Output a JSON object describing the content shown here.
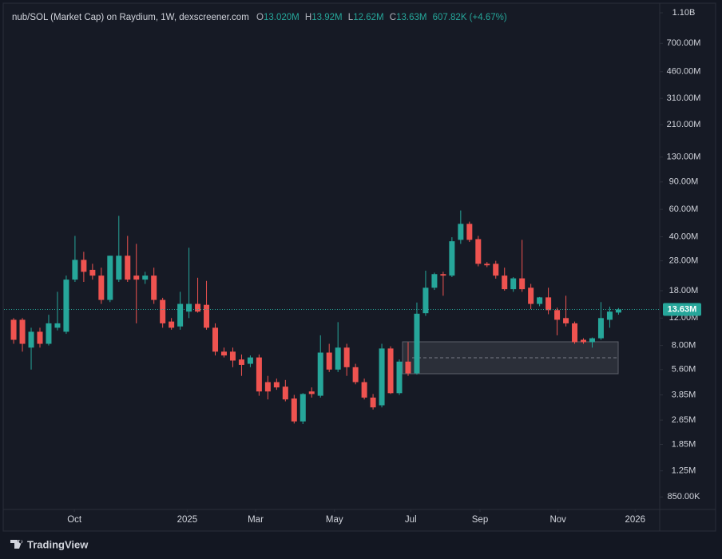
{
  "chart_data": {
    "type": "candlestick",
    "header": {
      "symbol": "nub/SOL (Market Cap) on Raydium, 1W, dexscreener.com",
      "o_label": "O",
      "o": "13.020M",
      "h_label": "H",
      "h": "13.92M",
      "l_label": "L",
      "l": "12.62M",
      "c_label": "C",
      "c": "13.63M",
      "change": "607.82K (+4.67%)"
    },
    "log_scale": true,
    "grid": false,
    "up_color": "#26a69a",
    "down_color": "#ef5350",
    "ylim": [
      0.706,
      1253
    ],
    "yticks": [
      {
        "value": 1100,
        "label": "1.10B"
      },
      {
        "value": 700,
        "label": "700.00M"
      },
      {
        "value": 460,
        "label": "460.00M"
      },
      {
        "value": 310,
        "label": "310.00M"
      },
      {
        "value": 210,
        "label": "210.00M"
      },
      {
        "value": 130,
        "label": "130.00M"
      },
      {
        "value": 90,
        "label": "90.00M"
      },
      {
        "value": 60,
        "label": "60.00M"
      },
      {
        "value": 40,
        "label": "40.00M"
      },
      {
        "value": 28,
        "label": "28.00M"
      },
      {
        "value": 18,
        "label": "18.00M"
      },
      {
        "value": 12,
        "label": "12.00M"
      },
      {
        "value": 8,
        "label": "8.00M"
      },
      {
        "value": 5.6,
        "label": "5.60M"
      },
      {
        "value": 3.85,
        "label": "3.85M"
      },
      {
        "value": 2.65,
        "label": "2.65M"
      },
      {
        "value": 1.85,
        "label": "1.85M"
      },
      {
        "value": 1.25,
        "label": "1.25M"
      },
      {
        "value": 0.85,
        "label": "850.00K"
      }
    ],
    "xlim": [
      -1.1,
      73.7
    ],
    "xticks": [
      {
        "value": 6.93,
        "label": "Oct"
      },
      {
        "value": 19.8,
        "label": "2025"
      },
      {
        "value": 27.6,
        "label": "Mar"
      },
      {
        "value": 36.6,
        "label": "May"
      },
      {
        "value": 45.3,
        "label": "Jul"
      },
      {
        "value": 53.2,
        "label": "Sep"
      },
      {
        "value": 62.1,
        "label": "Nov"
      },
      {
        "value": 70.9,
        "label": "2026"
      }
    ],
    "open": [
      11.7,
      11.7,
      7.75,
      9.8,
      8.2,
      10.4,
      9.8,
      21.2,
      28.4,
      24.5,
      22.5,
      15.7,
      21.2,
      30.2,
      22.5,
      21.2,
      22.5,
      15.7,
      11.4,
      10.6,
      13.2,
      14.8,
      14.6,
      10.4,
      7.3,
      7.3,
      6.5,
      6.1,
      6.7,
      4.65,
      4.65,
      4.35,
      3.65,
      2.6,
      4.05,
      3.8,
      7.2,
      5.6,
      7.75,
      5.8,
      4.65,
      3.7,
      3.3,
      7.65,
      3.95,
      6.3,
      5.3,
      12.9,
      18.8,
      23.0,
      22.5,
      38.2,
      48.4,
      38.6,
      26.8,
      26.8,
      22.5,
      18.4,
      21.6,
      18.8,
      14.8,
      16.3,
      13.5,
      12.0,
      11.1,
      8.7,
      8.4,
      8.9,
      11.7,
      13.02
    ],
    "high": [
      12.0,
      12.0,
      10.4,
      10.4,
      12.6,
      17.7,
      22.5,
      40.5,
      32,
      26.8,
      25.3,
      30.2,
      54.5,
      40.5,
      36,
      23.8,
      25.3,
      16.2,
      12.0,
      17.7,
      34,
      21.8,
      20.8,
      11.1,
      7.75,
      7.75,
      7.0,
      6.9,
      7.0,
      5.1,
      4.9,
      4.8,
      3.85,
      3.95,
      4.3,
      9.3,
      8.2,
      11.3,
      8.2,
      6.1,
      4.9,
      3.9,
      8.2,
      7.9,
      6.5,
      8.4,
      15.1,
      24.2,
      23.5,
      23.8,
      39.7,
      59,
      50,
      40.5,
      27.5,
      28,
      25.3,
      22.0,
      38.2,
      19.9,
      16.4,
      18.8,
      14,
      16.7,
      11.4,
      8.9,
      9.0,
      15.2,
      14.2,
      13.92
    ],
    "low": [
      8.2,
      7.3,
      5.6,
      7.75,
      8.0,
      10.0,
      9.5,
      20.5,
      20.5,
      21.2,
      14.8,
      15.2,
      20.5,
      20.5,
      11.1,
      19.9,
      14.8,
      10.4,
      10.1,
      10.1,
      12,
      13.0,
      10.1,
      6.9,
      6.7,
      5.8,
      5.1,
      5.8,
      3.8,
      3.6,
      4.15,
      3.5,
      2.52,
      2.5,
      3.7,
      3.7,
      5.4,
      5.4,
      5.1,
      4.5,
      3.6,
      3.1,
      3.2,
      3.9,
      3.85,
      5.1,
      5.2,
      12.4,
      18.2,
      16.7,
      22.0,
      36,
      37,
      25.8,
      25.5,
      21.5,
      18,
      17.7,
      17.7,
      13.7,
      14.3,
      12.7,
      9.3,
      10.6,
      8.2,
      8.2,
      7.75,
      8.7,
      10.4,
      12.62
    ],
    "close": [
      8.7,
      8.2,
      9.8,
      8.2,
      11.1,
      11.1,
      21.2,
      28.4,
      23.8,
      22.5,
      15.7,
      30.2,
      30.2,
      21.2,
      21.2,
      22.5,
      15.7,
      11.1,
      10.4,
      14.8,
      14.8,
      13.2,
      10.4,
      7.3,
      6.9,
      6.4,
      6.0,
      6.7,
      4.05,
      4.05,
      4.3,
      3.6,
      2.6,
      3.9,
      3.9,
      7.2,
      5.6,
      7.75,
      5.8,
      4.65,
      3.7,
      3.2,
      7.65,
      3.95,
      6.3,
      5.3,
      12.8,
      18.8,
      23.0,
      22.5,
      37.4,
      48.4,
      38.2,
      26.8,
      26.2,
      22.5,
      18.4,
      21.6,
      18.4,
      14.8,
      16.3,
      13.5,
      11.7,
      11.1,
      8.4,
      8.4,
      8.9,
      12.0,
      13.2,
      13.63
    ],
    "price_line": {
      "value": 13.63,
      "label": "13.63M"
    },
    "footer": {
      "brand": "TradingView"
    }
  }
}
